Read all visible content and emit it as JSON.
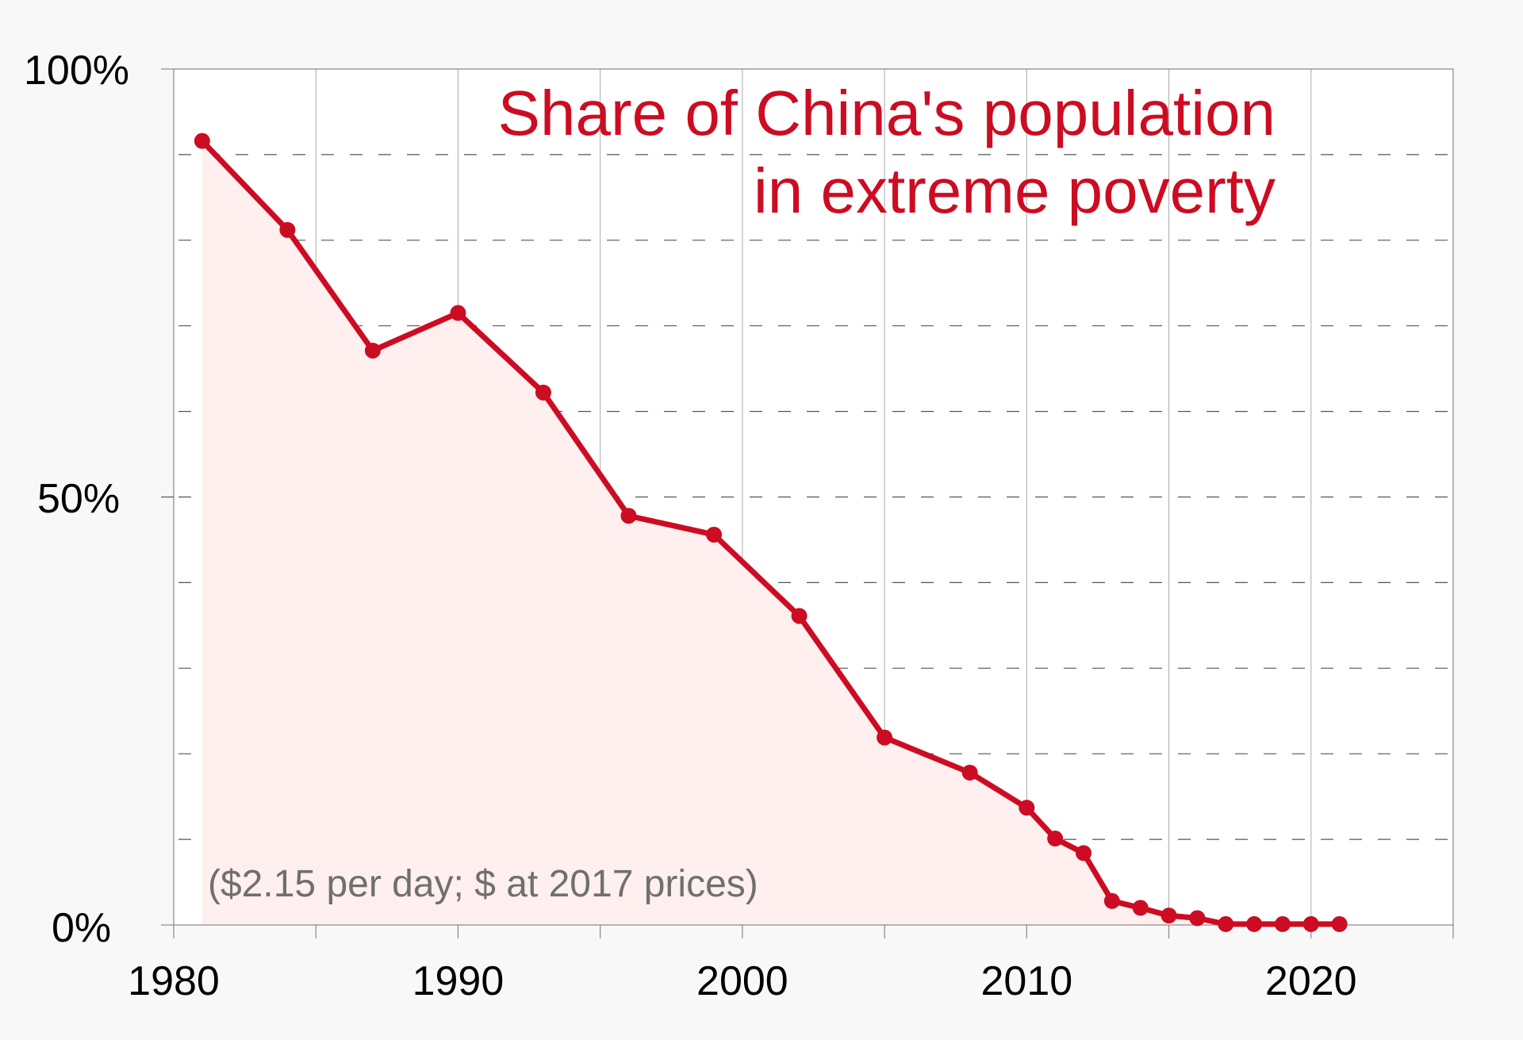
{
  "chart_data": {
    "type": "area",
    "title_lines": [
      "Share of China's population",
      "in extreme poverty"
    ],
    "note": "($2.15 per day; $ at 2017 prices)",
    "xlabel": "",
    "ylabel": "",
    "xlim": [
      1980,
      2025
    ],
    "ylim": [
      0,
      100
    ],
    "x_ticks": [
      1980,
      1990,
      2000,
      2010,
      2020
    ],
    "x_tick_labels": [
      "1980",
      "1990",
      "2000",
      "2010",
      "2020"
    ],
    "y_ticks": [
      0,
      50,
      100
    ],
    "y_tick_labels": [
      "0%",
      "50%",
      "100%"
    ],
    "grid": "vertical lines every 5 years; dashed horizontal lines every 10%",
    "legend": "none",
    "series": [
      {
        "name": "Share of China's population in extreme poverty",
        "x": [
          1981,
          1984,
          1987,
          1990,
          1993,
          1996,
          1999,
          2002,
          2005,
          2008,
          2010,
          2011,
          2012,
          2013,
          2014,
          2015,
          2016,
          2017,
          2018,
          2019,
          2020,
          2021
        ],
        "y": [
          91.6,
          81.2,
          67.1,
          71.5,
          62.2,
          47.8,
          45.6,
          36.1,
          21.9,
          17.8,
          13.7,
          10.1,
          8.4,
          2.8,
          2.0,
          1.1,
          0.8,
          0.1,
          0.1,
          0.1,
          0.1,
          0.1
        ]
      }
    ],
    "colors": {
      "line": "#cc0c22",
      "fill": "#ffefef",
      "title": "#cc0c22",
      "note": "#6f6f6f",
      "grid": "#aaaaaa",
      "axis": "#888888",
      "dash": "#555555",
      "page_background": "#f8f8f8",
      "plot_background": "#ffffff"
    }
  }
}
